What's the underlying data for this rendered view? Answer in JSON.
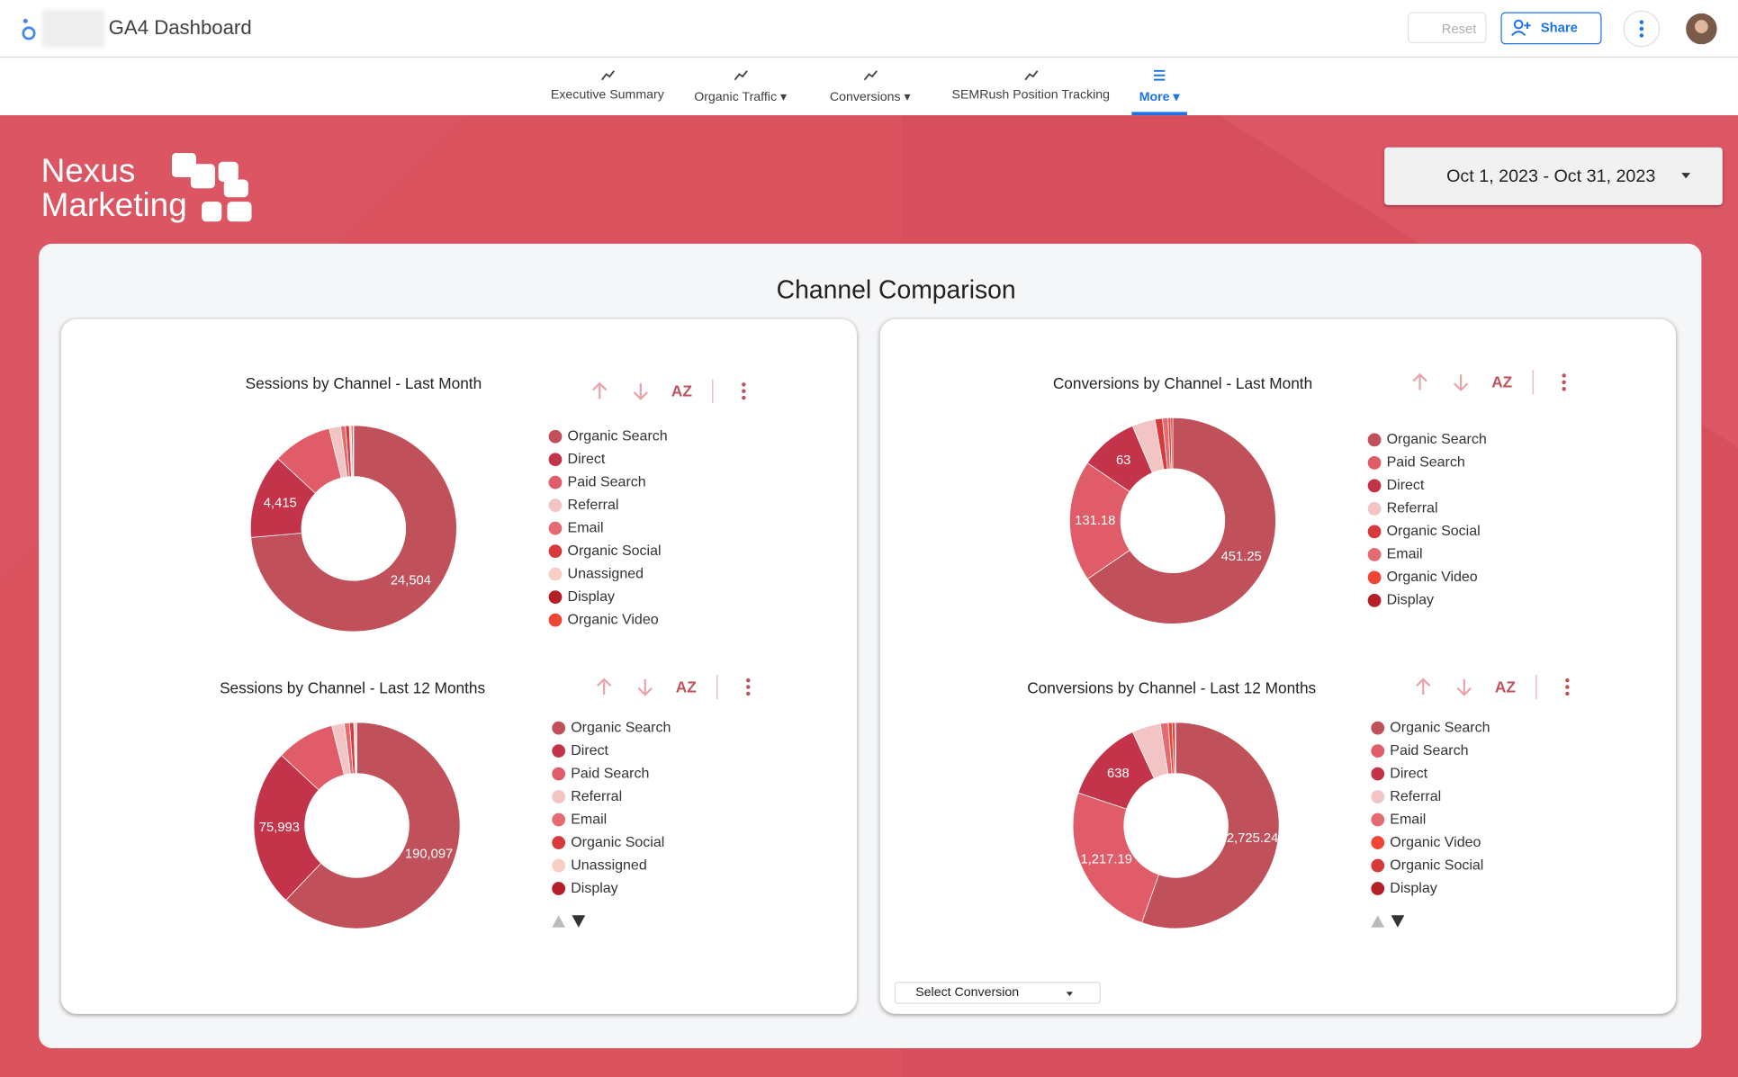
{
  "header": {
    "title": "GA4 Dashboard",
    "reset": "Reset",
    "share": "Share"
  },
  "nav": [
    "Executive Summary",
    "Organic Traffic",
    "Conversions",
    "SEMRush Position Tracking",
    "More"
  ],
  "brand": {
    "line1": "Nexus",
    "line2": "Marketing"
  },
  "date_range": "Oct 1, 2023 - Oct 31, 2023",
  "section_title": "Channel Comparison",
  "sort_icon": "AZ",
  "select_conversion": "Select Conversion",
  "charts": [
    {
      "type": "pie",
      "title": "Sessions by Channel - Last Month",
      "categories": [
        "Organic Search",
        "Direct",
        "Paid Search",
        "Referral",
        "Email",
        "Organic Social",
        "Unassigned",
        "Display",
        "Organic Video"
      ],
      "values": [
        24504,
        4415,
        3100,
        600,
        250,
        200,
        100,
        80,
        40
      ],
      "value_labels": [
        "24,504",
        "4,415",
        null,
        null,
        null,
        null,
        null,
        null,
        null
      ],
      "colors": [
        "#c0505a",
        "#c3344a",
        "#e05c68",
        "#f2c4c4",
        "#e56b73",
        "#d63a3a",
        "#f8cfc4",
        "#b51f27",
        "#ef4535"
      ]
    },
    {
      "type": "pie",
      "title": "Conversions by Channel - Last Month",
      "categories": [
        "Organic Search",
        "Paid Search",
        "Direct",
        "Referral",
        "Organic Social",
        "Email",
        "Organic Video",
        "Display"
      ],
      "values": [
        451.25,
        131.18,
        63,
        25,
        8,
        6,
        3,
        2
      ],
      "value_labels": [
        "451.25",
        "131.18",
        "63",
        null,
        null,
        null,
        null,
        null
      ],
      "colors": [
        "#c0505a",
        "#e05c68",
        "#c3344a",
        "#f2c4c4",
        "#d63a3a",
        "#e56b73",
        "#ef4535",
        "#b51f27"
      ]
    },
    {
      "type": "pie",
      "title": "Sessions by Channel - Last 12 Months",
      "categories": [
        "Organic Search",
        "Direct",
        "Paid Search",
        "Referral",
        "Email",
        "Organic Social",
        "Unassigned",
        "Display"
      ],
      "values": [
        190097,
        75993,
        28000,
        6000,
        2500,
        2000,
        1000,
        500
      ],
      "value_labels": [
        "190,097",
        "75,993",
        null,
        null,
        null,
        null,
        null,
        null
      ],
      "colors": [
        "#c0505a",
        "#c3344a",
        "#e05c68",
        "#f2c4c4",
        "#e56b73",
        "#d63a3a",
        "#f8cfc4",
        "#b51f27"
      ]
    },
    {
      "type": "pie",
      "title": "Conversions by Channel - Last 12 Months",
      "categories": [
        "Organic Search",
        "Paid Search",
        "Direct",
        "Referral",
        "Email",
        "Organic Video",
        "Organic Social",
        "Display"
      ],
      "values": [
        2725.24,
        1217.19,
        638,
        220,
        60,
        30,
        20,
        10
      ],
      "value_labels": [
        "2,725.24",
        "1,217.19",
        "638",
        null,
        null,
        null,
        null,
        null
      ],
      "colors": [
        "#c0505a",
        "#e05c68",
        "#c3344a",
        "#f2c4c4",
        "#e56b73",
        "#ef4535",
        "#d63a3a",
        "#b51f27"
      ]
    }
  ]
}
